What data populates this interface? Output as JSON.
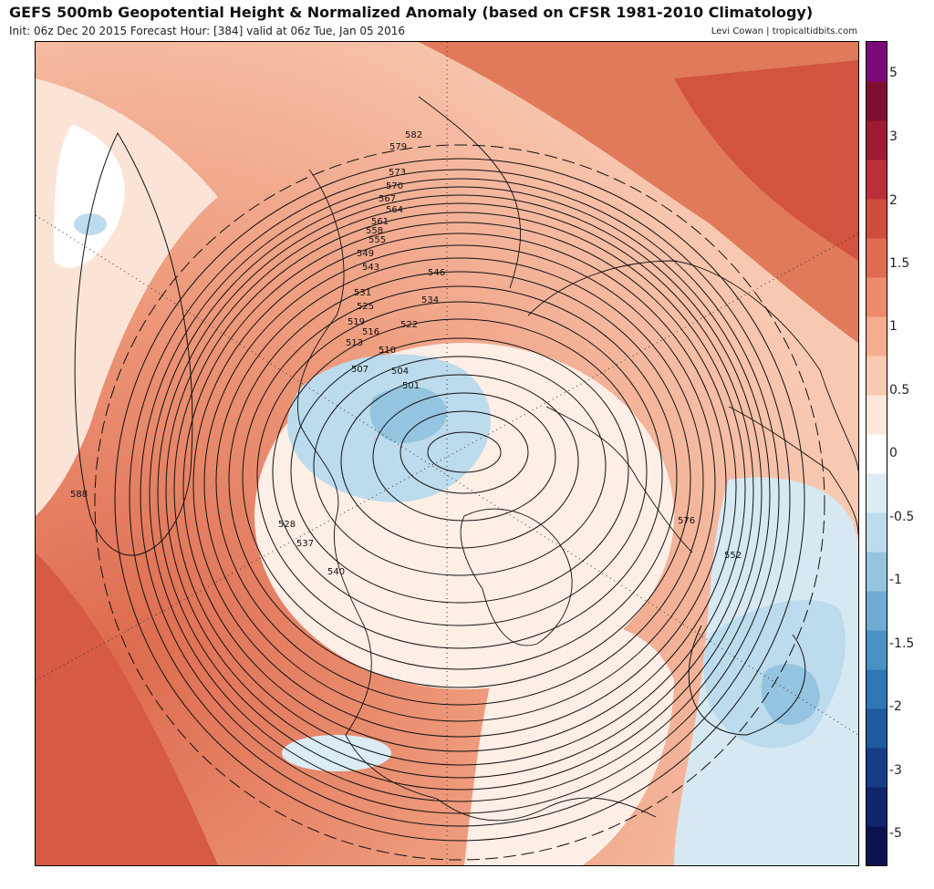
{
  "header": {
    "title": "GEFS 500mb Geopotential Height & Normalized Anomaly (based on CFSR 1981-2010 Climatology)",
    "subtitle": "Init: 06z Dec 20 2015   Forecast Hour: [384]   valid at 06z Tue, Jan 05 2016",
    "credit": "Levi Cowan | tropicaltidbits.com"
  },
  "colorbar": {
    "labels": [
      "5",
      "3",
      "2",
      "1.5",
      "1",
      "0.5",
      "0",
      "-0.5",
      "-1",
      "-1.5",
      "-2",
      "-3",
      "-5"
    ],
    "colors": [
      "#0c1250",
      "#10256b",
      "#163c85",
      "#1f5b9e",
      "#2f76b4",
      "#4a91c4",
      "#6fabd3",
      "#95c4e0",
      "#bcdbec",
      "#dcecf4",
      "#ffffff",
      "#fde6da",
      "#f9cbb3",
      "#f4ad8e",
      "#ec8c6c",
      "#e06c50",
      "#cf4d3e",
      "#b9303a",
      "#9e1b32",
      "#7e0f2f",
      "#7a0a7a"
    ]
  },
  "map": {
    "contour_labels": [
      "582",
      "579",
      "573",
      "570",
      "567",
      "564",
      "561",
      "558",
      "555",
      "549",
      "546",
      "543",
      "537",
      "534",
      "531",
      "528",
      "525",
      "522",
      "519",
      "516",
      "513",
      "510",
      "507",
      "504",
      "501",
      "588",
      "576",
      "552",
      "540"
    ],
    "projection": "north polar stereographic"
  }
}
